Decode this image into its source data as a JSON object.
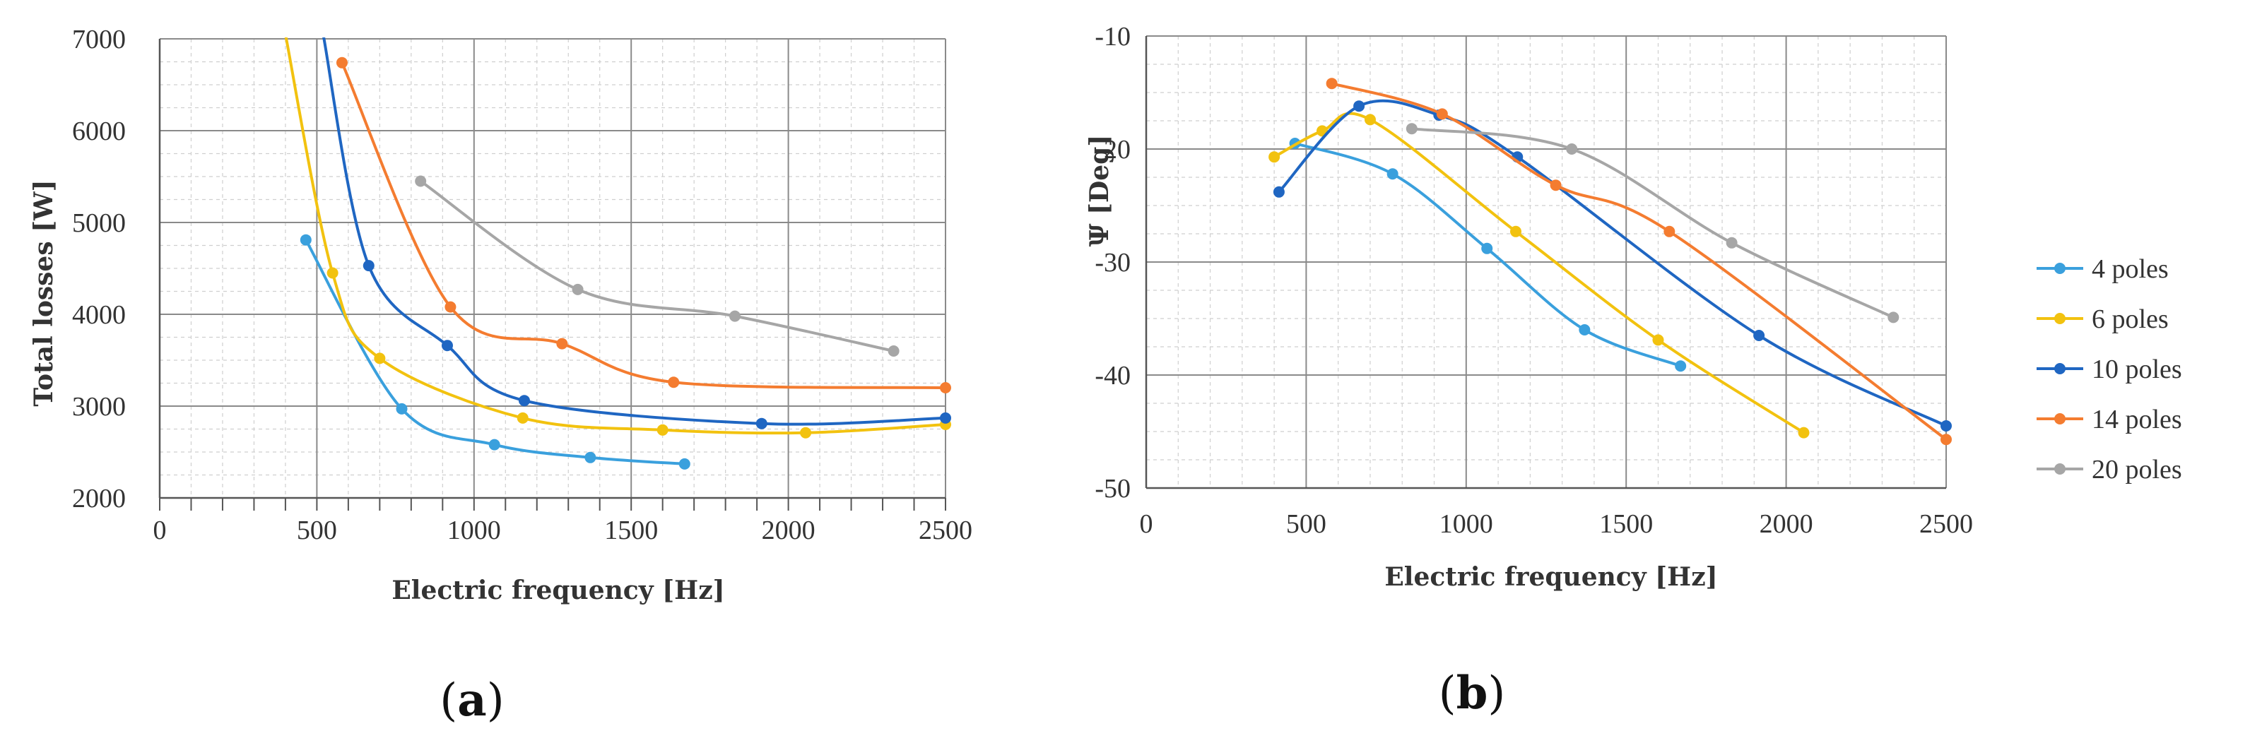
{
  "chart_data": [
    {
      "type": "line",
      "panel_label": {
        "open": "(",
        "letter": "a",
        "close": ")"
      },
      "xlabel": "Electric frequency [Hz]",
      "ylabel": "Total losses  [W]",
      "xlim": [
        0,
        2500
      ],
      "ylim": [
        2000,
        7000
      ],
      "xticks": [
        0,
        500,
        1000,
        1500,
        2000,
        2500
      ],
      "yticks": [
        2000,
        3000,
        4000,
        5000,
        6000,
        7000
      ],
      "grid": true,
      "series": [
        {
          "name": "4 poles",
          "color": "#3aa0dd",
          "x": [
            465,
            770,
            1065,
            1370,
            1670
          ],
          "y": [
            4810,
            2970,
            2580,
            2440,
            2370
          ]
        },
        {
          "name": "6 poles",
          "color": "#f2c20f",
          "x": [
            400,
            550,
            700,
            1155,
            1600,
            2055,
            2500
          ],
          "y": [
            7050,
            4450,
            3520,
            2870,
            2740,
            2710,
            2800
          ]
        },
        {
          "name": "10 poles",
          "color": "#1f66c2",
          "x": [
            520,
            665,
            915,
            1160,
            1915,
            2500
          ],
          "y": [
            7050,
            4530,
            3660,
            3060,
            2810,
            2870
          ]
        },
        {
          "name": "14 poles",
          "color": "#f47c30",
          "x": [
            580,
            925,
            1280,
            1635,
            2500
          ],
          "y": [
            6740,
            4080,
            3680,
            3260,
            3200
          ]
        },
        {
          "name": "20 poles",
          "color": "#a6a6a6",
          "x": [
            830,
            1330,
            1830,
            2335
          ],
          "y": [
            5450,
            4270,
            3980,
            3600
          ]
        }
      ]
    },
    {
      "type": "line",
      "panel_label": {
        "open": "(",
        "letter": "b",
        "close": ")"
      },
      "xlabel": "Electric frequency [Hz]",
      "ylabel": "Ψ [Deg]",
      "xlim": [
        0,
        2500
      ],
      "ylim": [
        -50,
        -10
      ],
      "xticks": [
        0,
        500,
        1000,
        1500,
        2000,
        2500
      ],
      "yticks": [
        -50,
        -40,
        -30,
        -20,
        -10
      ],
      "grid": true,
      "legend": "right",
      "series": [
        {
          "name": "4 poles",
          "color": "#3aa0dd",
          "x": [
            465,
            770,
            1065,
            1370,
            1670
          ],
          "y": [
            -19.5,
            -22.2,
            -28.8,
            -36.0,
            -39.2
          ]
        },
        {
          "name": "6 poles",
          "color": "#f2c20f",
          "x": [
            400,
            550,
            700,
            1155,
            1600,
            2055
          ],
          "y": [
            -20.7,
            -18.4,
            -17.4,
            -27.3,
            -36.9,
            -45.1
          ]
        },
        {
          "name": "10 poles",
          "color": "#1f66c2",
          "x": [
            415,
            665,
            915,
            1160,
            1915,
            2500
          ],
          "y": [
            -23.8,
            -16.2,
            -17.0,
            -20.7,
            -36.5,
            -44.5
          ]
        },
        {
          "name": "14 poles",
          "color": "#f47c30",
          "x": [
            580,
            925,
            1280,
            1635,
            2500
          ],
          "y": [
            -14.2,
            -16.9,
            -23.2,
            -27.3,
            -45.7
          ]
        },
        {
          "name": "20 poles",
          "color": "#a6a6a6",
          "x": [
            830,
            1330,
            1830,
            2335
          ],
          "y": [
            -18.2,
            -20.0,
            -28.3,
            -34.9
          ]
        }
      ]
    }
  ],
  "legend": {
    "entries": [
      "4 poles",
      "6 poles",
      "10 poles",
      "14 poles",
      "20 poles"
    ]
  }
}
